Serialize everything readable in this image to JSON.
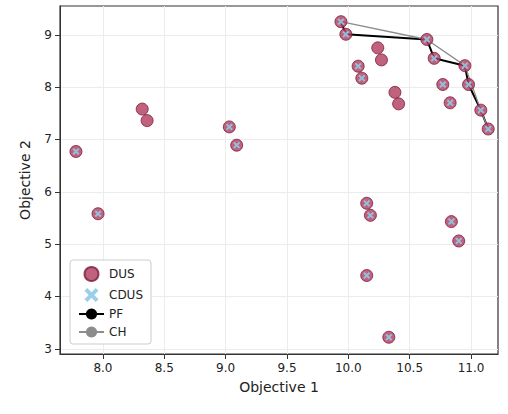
{
  "chart_data": {
    "type": "scatter",
    "x_label": "Objective 1",
    "y_label": "Objective 2",
    "xlim": [
      7.65,
      11.22
    ],
    "ylim": [
      2.9,
      9.55
    ],
    "xticks": [
      {
        "value": 8,
        "label": "8.0"
      },
      8.5,
      {
        "value": 9,
        "label": "9.0"
      },
      9.5,
      {
        "value": 10,
        "label": "10.0"
      },
      10.5,
      {
        "value": 11,
        "label": "11.0"
      }
    ],
    "yticks": [
      3,
      4,
      5,
      6,
      7,
      8,
      9
    ],
    "grid": true,
    "legend": "lower left",
    "series": [
      {
        "name": "DUS",
        "type": "scatter",
        "marker": "circle",
        "color": "#b03a5c",
        "x": [
          7.78,
          7.96,
          8.32,
          8.36,
          9.03,
          9.09,
          9.94,
          9.98,
          10.08,
          10.11,
          10.24,
          10.27,
          10.38,
          10.41,
          10.15,
          10.18,
          10.15,
          10.33,
          10.64,
          10.7,
          10.77,
          10.83,
          10.95,
          10.98,
          11.08,
          11.14,
          10.84,
          10.9
        ],
        "values": [
          6.77,
          5.58,
          7.58,
          7.36,
          7.24,
          6.89,
          9.25,
          9.01,
          8.4,
          8.17,
          8.75,
          8.52,
          7.9,
          7.68,
          5.78,
          5.55,
          4.4,
          3.22,
          8.91,
          8.55,
          8.05,
          7.7,
          8.41,
          8.05,
          7.56,
          7.2,
          5.43,
          5.06
        ]
      },
      {
        "name": "CDUS",
        "type": "scatter",
        "marker": "x",
        "color": "#8ecae6",
        "x": [
          7.78,
          7.96,
          9.03,
          9.09,
          9.94,
          9.98,
          10.08,
          10.11,
          10.15,
          10.18,
          10.15,
          10.33,
          10.64,
          10.7,
          10.77,
          10.83,
          10.95,
          10.98,
          11.08,
          11.14,
          10.84,
          10.9
        ],
        "values": [
          6.77,
          5.58,
          7.24,
          6.89,
          9.25,
          9.01,
          8.4,
          8.17,
          5.78,
          5.55,
          4.4,
          3.22,
          8.91,
          8.55,
          8.05,
          7.7,
          8.41,
          8.05,
          7.56,
          7.2,
          5.43,
          5.06
        ]
      },
      {
        "name": "PF",
        "type": "line",
        "line_style": "solid",
        "color": "#000000",
        "x": [
          9.94,
          9.98,
          10.64,
          10.7,
          10.95,
          10.98,
          11.08,
          11.14
        ],
        "values": [
          9.25,
          9.01,
          8.91,
          8.55,
          8.41,
          8.05,
          7.56,
          7.2
        ]
      },
      {
        "name": "CH",
        "type": "line",
        "line_style": "solid",
        "color": "#8c8c8c",
        "x": [
          9.94,
          10.64,
          10.95,
          11.08,
          11.14
        ],
        "values": [
          9.25,
          8.91,
          8.41,
          7.56,
          7.2
        ]
      }
    ]
  }
}
